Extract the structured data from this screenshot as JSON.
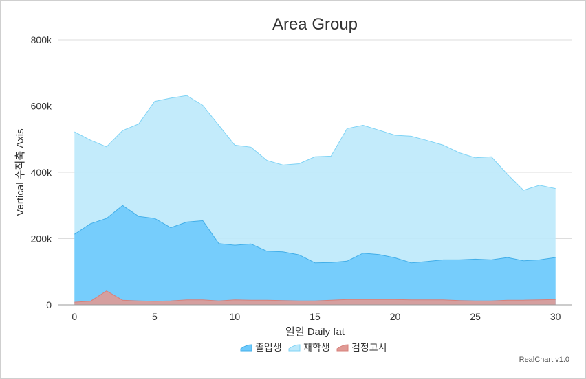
{
  "chart_data": {
    "type": "area",
    "title": "Area Group",
    "xlabel": "일일 Daily fat",
    "ylabel": "Vertical 수직축 Axis",
    "credit": "RealChart v1.0",
    "x": [
      0,
      1,
      2,
      3,
      4,
      5,
      6,
      7,
      8,
      9,
      10,
      11,
      12,
      13,
      14,
      15,
      16,
      17,
      18,
      19,
      20,
      21,
      22,
      23,
      24,
      25,
      26,
      27,
      28,
      29,
      30
    ],
    "xticks": [
      0,
      5,
      10,
      15,
      20,
      25,
      30
    ],
    "xlim": [
      -1,
      31
    ],
    "ylim": [
      0,
      800000
    ],
    "yticks": [
      0,
      200000,
      400000,
      600000,
      800000
    ],
    "ytick_labels": [
      "0",
      "200k",
      "400k",
      "600k",
      "800k"
    ],
    "grid": true,
    "legend_position": "bottom",
    "series": [
      {
        "name": "재학생",
        "color": "#bde9fb",
        "stroke": "#7fd3f5",
        "values": [
          522000,
          497000,
          477000,
          526000,
          546000,
          614000,
          624000,
          632000,
          602000,
          542000,
          482000,
          476000,
          436000,
          422000,
          426000,
          447000,
          449000,
          532000,
          542000,
          527000,
          512000,
          509000,
          496000,
          482000,
          459000,
          444000,
          447000,
          394000,
          346000,
          361000,
          351000
        ]
      },
      {
        "name": "졸업생",
        "color": "#6ecafc",
        "stroke": "#42aee8",
        "values": [
          213000,
          245000,
          261000,
          300000,
          267000,
          261000,
          233000,
          250000,
          254000,
          185000,
          180000,
          184000,
          162000,
          160000,
          151000,
          127000,
          128000,
          132000,
          156000,
          152000,
          142000,
          127000,
          131000,
          136000,
          136000,
          138000,
          136000,
          143000,
          133000,
          136000,
          143000
        ]
      },
      {
        "name": "검정고시",
        "color": "#e09a95",
        "stroke": "#d7807a",
        "values": [
          8000,
          11000,
          42000,
          14000,
          12000,
          11000,
          12000,
          15000,
          15000,
          12000,
          15000,
          14000,
          14000,
          13000,
          12000,
          12000,
          14000,
          16000,
          16000,
          16000,
          16000,
          15000,
          15000,
          15000,
          13000,
          12000,
          12000,
          14000,
          14000,
          15000,
          16000
        ]
      }
    ],
    "legend_order": [
      "졸업생",
      "재학생",
      "검정고시"
    ]
  }
}
